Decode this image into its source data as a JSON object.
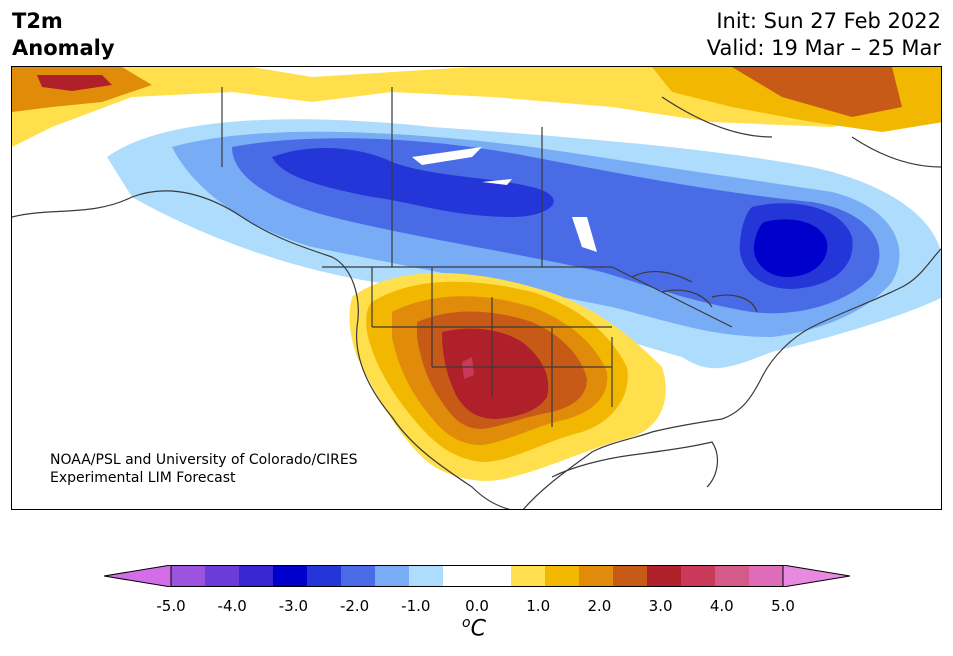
{
  "header": {
    "variable": "T2m",
    "field": "Anomaly",
    "init": "Init: Sun 27 Feb 2022",
    "valid": "Valid: 19 Mar – 25 Mar"
  },
  "credit": {
    "line1": "NOAA/PSL and University of Colorado/CIRES",
    "line2": "Experimental LIM Forecast"
  },
  "colorbar": {
    "ticks": [
      "-5.0",
      "-4.0",
      "-3.0",
      "-2.0",
      "-1.0",
      "0.0",
      "1.0",
      "2.0",
      "3.0",
      "4.0",
      "5.0"
    ],
    "unit_sup": "o",
    "unit": "C",
    "colors": [
      "#d46ee8",
      "#9c54e0",
      "#6a3cd8",
      "#3a26d0",
      "#0000cc",
      "#2536d8",
      "#4a6be6",
      "#78acf4",
      "#addcfc",
      "#ffffff",
      "#ffffff",
      "#ffe04c",
      "#f2b700",
      "#e08c0a",
      "#c85a18",
      "#b0202a",
      "#c83a58",
      "#d45a8a",
      "#de6cb8",
      "#e88ae0"
    ]
  }
}
